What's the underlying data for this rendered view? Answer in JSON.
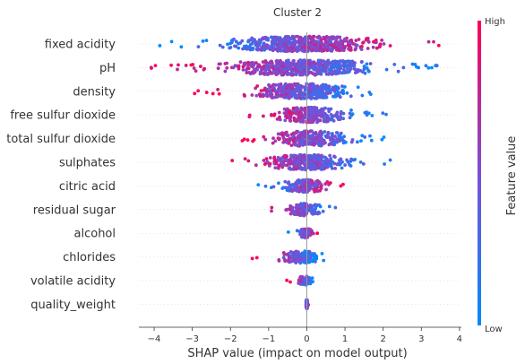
{
  "chart_data": {
    "type": "scatter",
    "subtype": "shap-beeswarm",
    "title": "Cluster 2",
    "xlabel": "SHAP value (impact on model output)",
    "xlim": [
      -4.4,
      4.05
    ],
    "xticks": [
      -4,
      -3,
      -2,
      -1,
      0,
      1,
      2,
      3,
      4
    ],
    "grid": false,
    "colorbar": {
      "label": "Feature value",
      "high_label": "High",
      "low_label": "Low",
      "high_color": "#ff0052",
      "low_color": "#008bfb"
    },
    "features": [
      {
        "name": "fixed acidity",
        "min": -4.05,
        "max": 3.65,
        "high_side": "positive"
      },
      {
        "name": "pH",
        "min": -4.1,
        "max": 3.6,
        "high_side": "negative"
      },
      {
        "name": "density",
        "min": -3.0,
        "max": 2.15,
        "high_side": "negative"
      },
      {
        "name": "free sulfur dioxide",
        "min": -1.6,
        "max": 2.2,
        "high_side": "negative"
      },
      {
        "name": "total sulfur dioxide",
        "min": -1.7,
        "max": 2.05,
        "high_side": "negative"
      },
      {
        "name": "sulphates",
        "min": -2.2,
        "max": 2.2,
        "high_side": "negative"
      },
      {
        "name": "citric acid",
        "min": -1.3,
        "max": 1.1,
        "high_side": "positive"
      },
      {
        "name": "residual sugar",
        "min": -1.1,
        "max": 0.8,
        "high_side": "negative"
      },
      {
        "name": "alcohol",
        "min": -0.5,
        "max": 0.4,
        "high_side": "positive"
      },
      {
        "name": "chlorides",
        "min": -1.45,
        "max": 0.5,
        "high_side": "negative"
      },
      {
        "name": "volatile acidity",
        "min": -0.55,
        "max": 0.3,
        "high_side": "negative"
      },
      {
        "name": "quality_weight",
        "min": -0.05,
        "max": 0.05,
        "high_side": "positive"
      }
    ]
  }
}
